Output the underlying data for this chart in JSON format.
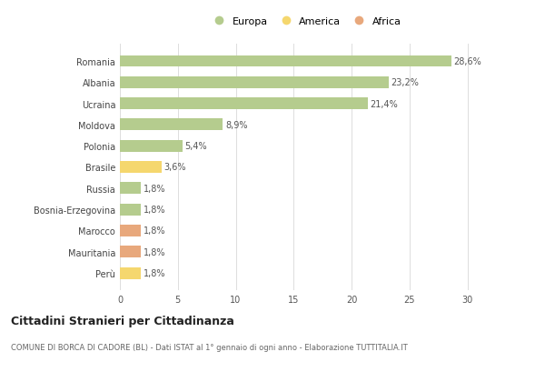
{
  "countries": [
    "Romania",
    "Albania",
    "Ucraina",
    "Moldova",
    "Polonia",
    "Brasile",
    "Russia",
    "Bosnia-Erzegovina",
    "Marocco",
    "Mauritania",
    "Perù"
  ],
  "values": [
    28.6,
    23.2,
    21.4,
    8.9,
    5.4,
    3.6,
    1.8,
    1.8,
    1.8,
    1.8,
    1.8
  ],
  "labels": [
    "28,6%",
    "23,2%",
    "21,4%",
    "8,9%",
    "5,4%",
    "3,6%",
    "1,8%",
    "1,8%",
    "1,8%",
    "1,8%",
    "1,8%"
  ],
  "continents": [
    "Europa",
    "Europa",
    "Europa",
    "Europa",
    "Europa",
    "America",
    "Europa",
    "Europa",
    "Africa",
    "Africa",
    "America"
  ],
  "color_europa": "#b5cc8e",
  "color_america": "#f5d76e",
  "color_africa": "#e8a87c",
  "title": "Cittadini Stranieri per Cittadinanza",
  "subtitle": "COMUNE DI BORCA DI CADORE (BL) - Dati ISTAT al 1° gennaio di ogni anno - Elaborazione TUTTITALIA.IT",
  "xlim": [
    0,
    32
  ],
  "xticks": [
    0,
    5,
    10,
    15,
    20,
    25,
    30
  ],
  "background_color": "#ffffff",
  "bar_height": 0.55,
  "legend_labels": [
    "Europa",
    "America",
    "Africa"
  ],
  "label_fontsize": 7,
  "tick_fontsize": 7,
  "title_fontsize": 9,
  "subtitle_fontsize": 6
}
